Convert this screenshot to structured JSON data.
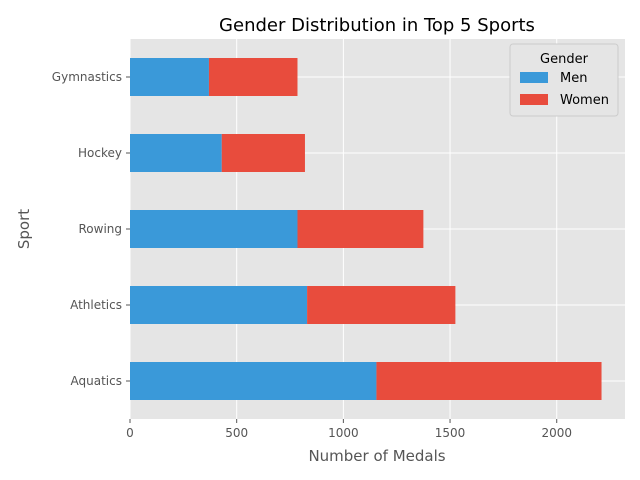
{
  "chart_data": {
    "type": "bar",
    "orientation": "horizontal",
    "stacked": true,
    "title": "Gender Distribution in Top 5 Sports",
    "xlabel": "Number of Medals",
    "ylabel": "Sport",
    "categories": [
      "Aquatics",
      "Athletics",
      "Rowing",
      "Hockey",
      "Gymnastics"
    ],
    "series": [
      {
        "name": "Men",
        "color": "#3a99d9",
        "values": [
          1155,
          830,
          785,
          430,
          370
        ]
      },
      {
        "name": "Women",
        "color": "#e84c3d",
        "values": [
          1055,
          695,
          590,
          390,
          415
        ]
      }
    ],
    "xlim": [
      0,
      2320
    ],
    "xticks": [
      0,
      500,
      1000,
      1500,
      2000
    ],
    "grid": true,
    "legend": {
      "title": "Gender",
      "position": "top-right"
    }
  }
}
